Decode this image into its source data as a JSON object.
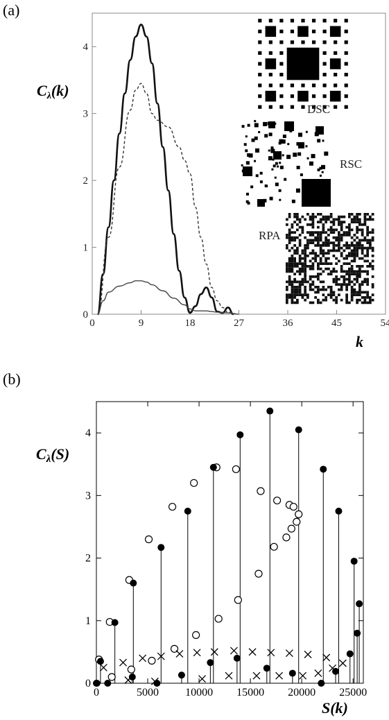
{
  "panels": {
    "a": "(a)",
    "b": "(b)"
  },
  "chart_data": [
    {
      "type": "line",
      "panel": "(a)",
      "xlabel": "k",
      "ylabel": "C_λ(k)",
      "xlim": [
        0,
        54
      ],
      "ylim": [
        0,
        4.5
      ],
      "xticks": [
        "0",
        "9",
        "18",
        "27",
        "36",
        "45",
        "54"
      ],
      "yticks": [
        "0",
        "1",
        "2",
        "3",
        "4"
      ],
      "grid": false,
      "annotations": [
        "DSC",
        "RSC",
        "RPA"
      ],
      "series": [
        {
          "name": "DSC",
          "style": "thick solid",
          "x": [
            1,
            2,
            3,
            4,
            5,
            6,
            7,
            8,
            9,
            10,
            11,
            12,
            13,
            14,
            15,
            16,
            17,
            18,
            19,
            20,
            21,
            22,
            23,
            24,
            25,
            26
          ],
          "y": [
            0,
            0.6,
            1.3,
            2.0,
            2.7,
            3.3,
            3.8,
            4.15,
            4.33,
            4.15,
            3.75,
            3.15,
            2.5,
            1.85,
            1.2,
            0.65,
            0.25,
            0.02,
            0.12,
            0.3,
            0.4,
            0.25,
            0.04,
            0.02,
            0.1,
            0.0
          ]
        },
        {
          "name": "RSC",
          "style": "dashed",
          "x": [
            1,
            3,
            5,
            7,
            8,
            9,
            10,
            11,
            12,
            14,
            16,
            17,
            18,
            19,
            20,
            21,
            22,
            23,
            24,
            25,
            27
          ],
          "y": [
            0,
            1.15,
            2.2,
            3.05,
            3.35,
            3.45,
            3.3,
            3.0,
            2.9,
            2.8,
            2.5,
            2.3,
            2.1,
            1.6,
            1.15,
            0.75,
            0.4,
            0.2,
            0.1,
            0.03,
            0
          ]
        },
        {
          "name": "RPA",
          "style": "thin solid",
          "x": [
            1,
            2,
            3,
            5,
            7,
            8,
            9,
            10,
            11,
            13,
            15,
            17,
            18,
            19,
            20,
            21,
            22,
            23,
            25,
            27
          ],
          "y": [
            0,
            0.2,
            0.33,
            0.42,
            0.47,
            0.5,
            0.5,
            0.48,
            0.44,
            0.35,
            0.24,
            0.14,
            0.08,
            0.05,
            0.05,
            0.05,
            0.04,
            0.03,
            0.02,
            0
          ]
        }
      ]
    },
    {
      "type": "scatter",
      "panel": "(b)",
      "xlabel": "S(k)",
      "ylabel": "C_λ(S)",
      "xlim": [
        0,
        26000
      ],
      "ylim": [
        0,
        4.5
      ],
      "xticks": [
        "0",
        "5000",
        "10000",
        "15000",
        "20000",
        "25000"
      ],
      "yticks": [
        "0",
        "1",
        "2",
        "3",
        "4"
      ],
      "grid": false,
      "series": [
        {
          "marker": "filled-circle-with-stems",
          "x": [
            0,
            50,
            400,
            1100,
            1800,
            3500,
            3600,
            5900,
            6300,
            8300,
            8900,
            11100,
            11400,
            13700,
            14000,
            16600,
            16900,
            19100,
            19700,
            21900,
            22100,
            23300,
            23600,
            24700,
            25100,
            25400,
            25600
          ],
          "y": [
            0,
            0,
            0.35,
            0,
            0.97,
            0.1,
            1.6,
            0,
            2.17,
            0.13,
            2.75,
            0.33,
            3.45,
            0.4,
            3.97,
            0.24,
            4.35,
            0.16,
            4.05,
            0,
            3.42,
            0.19,
            2.75,
            0.47,
            1.95,
            0.8,
            1.27
          ]
        },
        {
          "marker": "open-circle",
          "x": [
            250,
            1300,
            1500,
            3200,
            3400,
            5100,
            5400,
            7400,
            7600,
            9500,
            9700,
            11700,
            11900,
            13600,
            13800,
            15800,
            16000,
            17300,
            17600,
            18500,
            18800,
            19000,
            19200,
            19500,
            19700
          ],
          "y": [
            0.38,
            0.98,
            0.1,
            1.65,
            0.22,
            2.3,
            0.36,
            2.82,
            0.55,
            3.2,
            0.77,
            3.45,
            1.03,
            3.42,
            1.33,
            1.75,
            3.07,
            2.18,
            2.92,
            2.33,
            2.85,
            2.47,
            2.82,
            2.58,
            2.7
          ]
        },
        {
          "marker": "x",
          "x": [
            700,
            2600,
            4500,
            6300,
            8100,
            9800,
            11500,
            13400,
            15200,
            17000,
            18800,
            20600,
            22400,
            24000,
            3100,
            5700,
            10300,
            12900,
            15600,
            17800,
            20100,
            21600,
            23000
          ],
          "y": [
            0.25,
            0.33,
            0.4,
            0.43,
            0.47,
            0.49,
            0.5,
            0.52,
            0.5,
            0.49,
            0.48,
            0.46,
            0.41,
            0.32,
            0.05,
            0.03,
            0.07,
            0.12,
            0.12,
            0.12,
            0.12,
            0.16,
            0.24
          ]
        }
      ]
    }
  ]
}
